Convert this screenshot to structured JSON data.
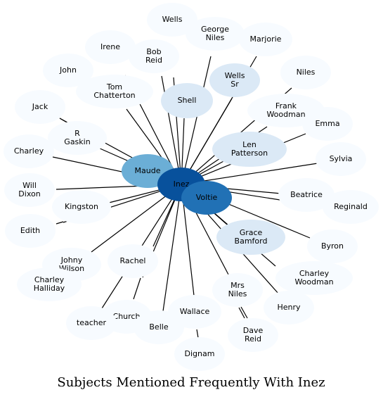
{
  "title": "Subjects Mentioned Frequently With Inez",
  "center": {
    "label": "Inez",
    "color": "#08519c"
  },
  "nodes": [
    {
      "label": "Wells",
      "color": "#f7fbff"
    },
    {
      "label": "George\nNiles",
      "color": "#f7fbff"
    },
    {
      "label": "Marjorie",
      "color": "#f7fbff"
    },
    {
      "label": "Irene",
      "color": "#f7fbff"
    },
    {
      "label": "Bob\nReid",
      "color": "#f7fbff"
    },
    {
      "label": "John",
      "color": "#f7fbff"
    },
    {
      "label": "Wells\nSr",
      "color": "#dbe9f6"
    },
    {
      "label": "Niles",
      "color": "#f7fbff"
    },
    {
      "label": "Tom\nChatterton",
      "color": "#f7fbff"
    },
    {
      "label": "Shell",
      "color": "#dbe9f6"
    },
    {
      "label": "Jack",
      "color": "#f7fbff"
    },
    {
      "label": "Frank\nWoodman",
      "color": "#f7fbff"
    },
    {
      "label": "Emma",
      "color": "#f7fbff"
    },
    {
      "label": "R\nGaskin",
      "color": "#f7fbff"
    },
    {
      "label": "Charley",
      "color": "#f7fbff"
    },
    {
      "label": "Len\nPatterson",
      "color": "#dbe9f6"
    },
    {
      "label": "Sylvia",
      "color": "#f7fbff"
    },
    {
      "label": "Maude",
      "color": "#6baed6"
    },
    {
      "label": "Will\nDixon",
      "color": "#f7fbff"
    },
    {
      "label": "Voltie",
      "color": "#2171b5"
    },
    {
      "label": "Beatrice",
      "color": "#f7fbff"
    },
    {
      "label": "Reginald",
      "color": "#f7fbff"
    },
    {
      "label": "Kingston",
      "color": "#f7fbff"
    },
    {
      "label": "Edith",
      "color": "#f7fbff"
    },
    {
      "label": "Grace\nBamford",
      "color": "#dbe9f6"
    },
    {
      "label": "Byron",
      "color": "#f7fbff"
    },
    {
      "label": "Johny\nWilson",
      "color": "#f7fbff"
    },
    {
      "label": "Rachel",
      "color": "#f7fbff"
    },
    {
      "label": "Charley\nHalliday",
      "color": "#f7fbff"
    },
    {
      "label": "Charley\nWoodman",
      "color": "#f7fbff"
    },
    {
      "label": "Mrs\nNiles",
      "color": "#f7fbff"
    },
    {
      "label": "Henry",
      "color": "#f7fbff"
    },
    {
      "label": "Wallace",
      "color": "#f7fbff"
    },
    {
      "label": "Church",
      "color": "#f7fbff"
    },
    {
      "label": "teacher",
      "color": "#f7fbff"
    },
    {
      "label": "Belle",
      "color": "#f7fbff"
    },
    {
      "label": "Dave\nReid",
      "color": "#f7fbff"
    },
    {
      "label": "Dignam",
      "color": "#f7fbff"
    }
  ]
}
